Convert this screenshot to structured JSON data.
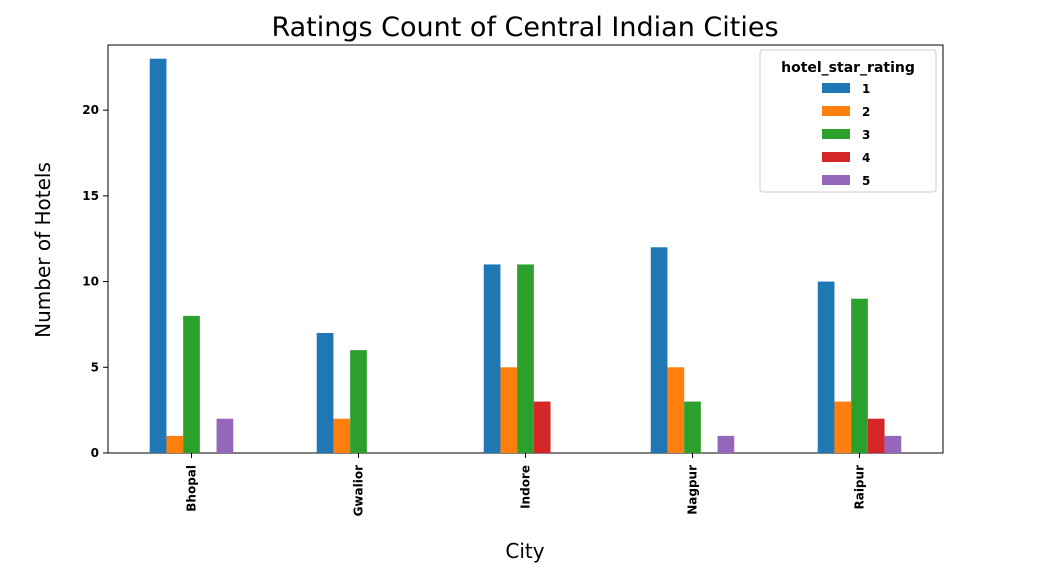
{
  "chart_data": {
    "type": "bar",
    "title": "Ratings Count of Central Indian Cities",
    "xlabel": "City",
    "ylabel": "Number of Hotels",
    "categories": [
      "Bhopal",
      "Gwalior",
      "Indore",
      "Nagpur",
      "Raipur"
    ],
    "ylim": [
      0,
      23
    ],
    "yticks": [
      0,
      5,
      10,
      15,
      20
    ],
    "grid": false,
    "legend": {
      "title": "hotel_star_rating",
      "placement": "top-right"
    },
    "series": [
      {
        "name": "1",
        "color": "#1f77b4",
        "values": [
          23,
          7,
          11,
          12,
          10
        ]
      },
      {
        "name": "2",
        "color": "#ff7f0e",
        "values": [
          1,
          2,
          5,
          5,
          3
        ]
      },
      {
        "name": "3",
        "color": "#2ca02c",
        "values": [
          8,
          6,
          11,
          3,
          9
        ]
      },
      {
        "name": "4",
        "color": "#d62728",
        "values": [
          0,
          0,
          3,
          0,
          2
        ]
      },
      {
        "name": "5",
        "color": "#9467bd",
        "values": [
          2,
          0,
          0,
          1,
          1
        ]
      }
    ]
  }
}
